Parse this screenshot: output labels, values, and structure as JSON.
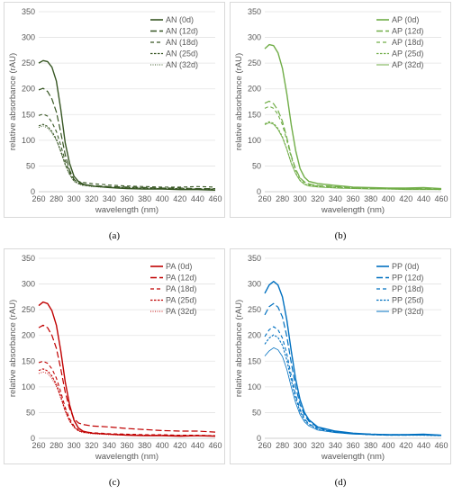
{
  "panels": [
    {
      "caption": "(a)",
      "chart_data": {
        "type": "line",
        "title": "",
        "xlabel": "wavelength (nm)",
        "ylabel": "relative absorbance (rAU)",
        "xlim": [
          260,
          460
        ],
        "ylim": [
          0,
          350
        ],
        "x_ticks": [
          "260",
          "280",
          "300",
          "320",
          "340",
          "360",
          "380",
          "400",
          "420",
          "440",
          "460"
        ],
        "y_ticks": [
          "0",
          "50",
          "100",
          "150",
          "200",
          "250",
          "300",
          "350"
        ],
        "grid": "horizontal",
        "legend_position": "top-right",
        "color": "#375623",
        "x": [
          260,
          265,
          270,
          275,
          280,
          285,
          290,
          295,
          300,
          305,
          310,
          320,
          340,
          360,
          380,
          400,
          420,
          440,
          460
        ],
        "series": [
          {
            "name": "AN (0d)",
            "style": "solid",
            "values": [
              250,
              255,
              253,
              242,
              215,
              160,
              95,
              55,
              30,
              20,
              15,
              11,
              8,
              6,
              5,
              5,
              4,
              4,
              3
            ]
          },
          {
            "name": "AN (12d)",
            "style": "dash",
            "values": [
              198,
              201,
              195,
              180,
              155,
              115,
              72,
              42,
              24,
              17,
              14,
              12,
              10,
              9,
              8,
              7,
              7,
              6,
              6
            ]
          },
          {
            "name": "AN (18d)",
            "style": "dash2",
            "values": [
              148,
              151,
              147,
              135,
              117,
              90,
              60,
              38,
              24,
              20,
              18,
              16,
              13,
              11,
              10,
              9,
              9,
              10,
              9
            ]
          },
          {
            "name": "AN (25d)",
            "style": "dot",
            "values": [
              128,
              131,
              127,
              117,
              102,
              79,
              53,
              34,
              21,
              16,
              13,
              11,
              9,
              8,
              7,
              6,
              6,
              5,
              5
            ]
          },
          {
            "name": "AN (32d)",
            "style": "dot2",
            "values": [
              125,
              128,
              124,
              114,
              100,
              77,
              52,
              33,
              20,
              15,
              12,
              10,
              8,
              7,
              6,
              6,
              5,
              5,
              5
            ]
          }
        ]
      }
    },
    {
      "caption": "(b)",
      "chart_data": {
        "type": "line",
        "title": "",
        "xlabel": "wavelength (nm)",
        "ylabel": "relative absorbance (rAU)",
        "xlim": [
          260,
          460
        ],
        "ylim": [
          0,
          350
        ],
        "x_ticks": [
          "260",
          "280",
          "300",
          "320",
          "340",
          "360",
          "380",
          "400",
          "420",
          "440",
          "460"
        ],
        "y_ticks": [
          "0",
          "50",
          "100",
          "150",
          "200",
          "250",
          "300",
          "350"
        ],
        "grid": "horizontal",
        "legend_position": "top-right",
        "color": "#70AD47",
        "x": [
          260,
          265,
          270,
          275,
          280,
          285,
          290,
          295,
          300,
          305,
          310,
          320,
          340,
          360,
          380,
          400,
          420,
          440,
          460
        ],
        "series": [
          {
            "name": "AP (0d)",
            "style": "solid",
            "values": [
              278,
              286,
              284,
              270,
              240,
              190,
              130,
              80,
              45,
              28,
              20,
              16,
              12,
              9,
              8,
              7,
              7,
              8,
              6
            ]
          },
          {
            "name": "AP (12d)",
            "style": "dash",
            "values": [
              172,
              176,
              171,
              158,
              137,
              105,
              70,
              44,
              27,
              19,
              15,
              12,
              10,
              8,
              7,
              6,
              6,
              6,
              5
            ]
          },
          {
            "name": "AP (18d)",
            "style": "dash2",
            "values": [
              162,
              166,
              162,
              150,
              130,
              100,
              67,
              42,
              26,
              18,
              14,
              11,
              9,
              7,
              6,
              6,
              5,
              5,
              5
            ]
          },
          {
            "name": "AP (25d)",
            "style": "dot",
            "values": [
              132,
              136,
              133,
              123,
              107,
              83,
              56,
              36,
              22,
              15,
              12,
              10,
              8,
              7,
              6,
              5,
              5,
              5,
              4
            ]
          },
          {
            "name": "AP (32d)",
            "style": "solid2",
            "values": [
              130,
              134,
              131,
              121,
              105,
              82,
              55,
              35,
              21,
              14,
              11,
              9,
              7,
              6,
              5,
              5,
              4,
              4,
              4
            ]
          }
        ]
      }
    },
    {
      "caption": "(c)",
      "chart_data": {
        "type": "line",
        "title": "",
        "xlabel": "wavelength (nm)",
        "ylabel": "relative absorbance (rAU)",
        "xlim": [
          260,
          460
        ],
        "ylim": [
          0,
          350
        ],
        "x_ticks": [
          "260",
          "280",
          "300",
          "320",
          "340",
          "360",
          "380",
          "400",
          "420",
          "440",
          "460"
        ],
        "y_ticks": [
          "0",
          "50",
          "100",
          "150",
          "200",
          "250",
          "300",
          "350"
        ],
        "grid": "horizontal",
        "legend_position": "top-right",
        "color": "#C00000",
        "x": [
          260,
          265,
          270,
          275,
          280,
          285,
          290,
          295,
          300,
          305,
          310,
          320,
          340,
          360,
          380,
          400,
          420,
          440,
          460
        ],
        "series": [
          {
            "name": "PA (0d)",
            "style": "solid",
            "values": [
              258,
              265,
              262,
              248,
              220,
              170,
              110,
              65,
              35,
              20,
              14,
              10,
              8,
              6,
              5,
              5,
              4,
              5,
              4
            ]
          },
          {
            "name": "PA (12d)",
            "style": "dash",
            "values": [
              215,
              220,
              215,
              200,
              175,
              135,
              90,
              58,
              38,
              30,
              27,
              24,
              22,
              19,
              17,
              15,
              14,
              14,
              12
            ]
          },
          {
            "name": "PA (18d)",
            "style": "dash2",
            "values": [
              147,
              150,
              146,
              135,
              117,
              90,
              60,
              38,
              24,
              16,
              13,
              11,
              9,
              8,
              7,
              7,
              6,
              6,
              5
            ]
          },
          {
            "name": "PA (25d)",
            "style": "dot",
            "values": [
              132,
              135,
              131,
              121,
              105,
              81,
              54,
              34,
              22,
              15,
              12,
              10,
              8,
              7,
              6,
              6,
              5,
              5,
              5
            ]
          },
          {
            "name": "PA (32d)",
            "style": "dot2",
            "values": [
              126,
              129,
              126,
              116,
              101,
              78,
              52,
              33,
              21,
              14,
              11,
              9,
              7,
              6,
              6,
              5,
              5,
              5,
              4
            ]
          }
        ]
      }
    },
    {
      "caption": "(d)",
      "chart_data": {
        "type": "line",
        "title": "",
        "xlabel": "wavelength (nm)",
        "ylabel": "relative absorbance (rAU)",
        "xlim": [
          260,
          460
        ],
        "ylim": [
          0,
          350
        ],
        "x_ticks": [
          "260",
          "280",
          "300",
          "320",
          "340",
          "360",
          "380",
          "400",
          "420",
          "440",
          "460"
        ],
        "y_ticks": [
          "0",
          "50",
          "100",
          "150",
          "200",
          "250",
          "300",
          "350"
        ],
        "grid": "horizontal",
        "legend_position": "top-right",
        "color": "#0070C0",
        "x": [
          260,
          265,
          270,
          275,
          280,
          285,
          290,
          295,
          300,
          305,
          310,
          320,
          340,
          360,
          380,
          400,
          420,
          440,
          460
        ],
        "series": [
          {
            "name": "PP (0d)",
            "style": "solid",
            "values": [
              282,
              298,
              305,
              298,
              275,
              230,
              170,
              115,
              75,
              50,
              36,
              22,
              14,
              10,
              8,
              7,
              7,
              8,
              6
            ]
          },
          {
            "name": "PP (12d)",
            "style": "dash",
            "values": [
              240,
              256,
              262,
              255,
              236,
              198,
              147,
              100,
              66,
              45,
              33,
              21,
              13,
              9,
              8,
              7,
              7,
              7,
              6
            ]
          },
          {
            "name": "PP (18d)",
            "style": "dash2",
            "values": [
              198,
              211,
              217,
              211,
              195,
              164,
              122,
              84,
              56,
              38,
              28,
              19,
              12,
              9,
              7,
              6,
              6,
              7,
              6
            ]
          },
          {
            "name": "PP (25d)",
            "style": "dot",
            "values": [
              183,
              195,
              201,
              196,
              181,
              152,
              113,
              78,
              52,
              36,
              27,
              18,
              12,
              9,
              7,
              6,
              6,
              6,
              5
            ]
          },
          {
            "name": "PP (32d)",
            "style": "solid2",
            "values": [
              160,
              170,
              176,
              172,
              159,
              134,
              100,
              69,
              46,
              32,
              24,
              16,
              11,
              8,
              7,
              6,
              6,
              6,
              5
            ]
          }
        ]
      }
    }
  ]
}
